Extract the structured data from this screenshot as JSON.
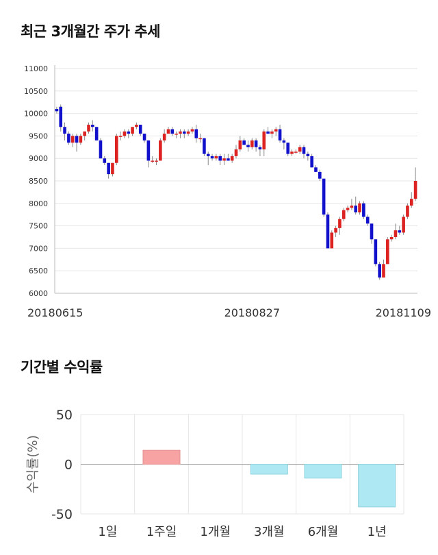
{
  "sections": {
    "trend_title": "최근 3개월간 주가 추세",
    "returns_title": "기간별 수익률"
  },
  "chart_data": [
    {
      "type": "candlestick",
      "title": "최근 3개월간 주가 추세",
      "ylim": [
        6000,
        11000
      ],
      "y_ticks": [
        6000,
        6500,
        7000,
        7500,
        8000,
        8500,
        9000,
        9500,
        10000,
        10500,
        11000
      ],
      "x_tick_labels": [
        {
          "label": "20180615",
          "index": 0
        },
        {
          "label": "20180827",
          "index": 49
        },
        {
          "label": "20181109",
          "index": 98
        }
      ],
      "grid": true,
      "up_color": "#dd2222",
      "down_color": "#1111cc",
      "candles": [
        [
          10100,
          10150,
          10000,
          10050
        ],
        [
          10150,
          10200,
          9600,
          9700
        ],
        [
          9700,
          9800,
          9400,
          9550
        ],
        [
          9550,
          9600,
          9300,
          9350
        ],
        [
          9350,
          9550,
          9250,
          9500
        ],
        [
          9500,
          9550,
          9150,
          9350
        ],
        [
          9350,
          9550,
          9300,
          9500
        ],
        [
          9500,
          9600,
          9400,
          9600
        ],
        [
          9600,
          9800,
          9550,
          9750
        ],
        [
          9750,
          9850,
          9600,
          9700
        ],
        [
          9700,
          9700,
          9400,
          9400
        ],
        [
          9400,
          9450,
          9000,
          9000
        ],
        [
          9000,
          9050,
          8850,
          8900
        ],
        [
          8900,
          8900,
          8550,
          8650
        ],
        [
          8650,
          8900,
          8600,
          8900
        ],
        [
          8900,
          9550,
          8850,
          9500
        ],
        [
          9500,
          9600,
          9400,
          9500
        ],
        [
          9500,
          9650,
          9450,
          9600
        ],
        [
          9600,
          9650,
          9450,
          9550
        ],
        [
          9550,
          9700,
          9500,
          9700
        ],
        [
          9700,
          9800,
          9650,
          9750
        ],
        [
          9750,
          9750,
          9500,
          9550
        ],
        [
          9550,
          9550,
          9350,
          9400
        ],
        [
          9400,
          9400,
          8800,
          8950
        ],
        [
          8950,
          9050,
          8900,
          8950
        ],
        [
          8950,
          9000,
          8850,
          8950
        ],
        [
          8950,
          9450,
          8950,
          9400
        ],
        [
          9400,
          9650,
          9350,
          9550
        ],
        [
          9550,
          9700,
          9550,
          9650
        ],
        [
          9650,
          9700,
          9500,
          9550
        ],
        [
          9550,
          9600,
          9450,
          9550
        ],
        [
          9550,
          9650,
          9450,
          9600
        ],
        [
          9600,
          9650,
          9450,
          9550
        ],
        [
          9550,
          9650,
          9500,
          9600
        ],
        [
          9600,
          9700,
          9550,
          9650
        ],
        [
          9650,
          9750,
          9350,
          9450
        ],
        [
          9450,
          9550,
          9350,
          9450
        ],
        [
          9450,
          9450,
          9050,
          9100
        ],
        [
          9100,
          9150,
          8850,
          9050
        ],
        [
          9050,
          9100,
          8950,
          9000
        ],
        [
          9000,
          9100,
          8950,
          9050
        ],
        [
          9050,
          9100,
          8850,
          8950
        ],
        [
          8950,
          9100,
          8850,
          9000
        ],
        [
          9000,
          9100,
          8950,
          8950
        ],
        [
          8950,
          9100,
          8900,
          9050
        ],
        [
          9050,
          9300,
          9000,
          9200
        ],
        [
          9200,
          9500,
          9150,
          9400
        ],
        [
          9400,
          9450,
          9300,
          9300
        ],
        [
          9300,
          9400,
          9150,
          9250
        ],
        [
          9250,
          9450,
          9200,
          9400
        ],
        [
          9400,
          9450,
          9150,
          9250
        ],
        [
          9250,
          9300,
          9050,
          9200
        ],
        [
          9200,
          9650,
          9050,
          9600
        ],
        [
          9600,
          9700,
          9550,
          9550
        ],
        [
          9550,
          9650,
          9450,
          9600
        ],
        [
          9600,
          9700,
          9500,
          9650
        ],
        [
          9650,
          9750,
          9350,
          9400
        ],
        [
          9400,
          9450,
          9200,
          9350
        ],
        [
          9350,
          9350,
          9050,
          9100
        ],
        [
          9100,
          9200,
          9050,
          9150
        ],
        [
          9150,
          9200,
          9100,
          9150
        ],
        [
          9150,
          9300,
          9100,
          9250
        ],
        [
          9250,
          9300,
          9000,
          9100
        ],
        [
          9100,
          9150,
          8950,
          9050
        ],
        [
          9050,
          9100,
          8800,
          8800
        ],
        [
          8800,
          8850,
          8700,
          8700
        ],
        [
          8700,
          8750,
          8500,
          8550
        ],
        [
          8550,
          8550,
          7700,
          7750
        ],
        [
          7750,
          7800,
          7000,
          7000
        ],
        [
          7000,
          7400,
          7000,
          7350
        ],
        [
          7350,
          7500,
          7250,
          7450
        ],
        [
          7450,
          7700,
          7300,
          7650
        ],
        [
          7650,
          7900,
          7600,
          7850
        ],
        [
          7850,
          7950,
          7800,
          7900
        ],
        [
          7900,
          8100,
          7850,
          7950
        ],
        [
          7950,
          8150,
          7750,
          7800
        ],
        [
          7800,
          8050,
          7750,
          8000
        ],
        [
          8000,
          8050,
          7650,
          7700
        ],
        [
          7700,
          7750,
          7500,
          7550
        ],
        [
          7550,
          7550,
          7100,
          7200
        ],
        [
          7200,
          7200,
          6600,
          6650
        ],
        [
          6650,
          6700,
          6300,
          6350
        ],
        [
          6350,
          6750,
          6350,
          6650
        ],
        [
          6650,
          7250,
          6650,
          7200
        ],
        [
          7200,
          7300,
          7150,
          7250
        ],
        [
          7250,
          7550,
          7200,
          7400
        ],
        [
          7400,
          7500,
          7300,
          7350
        ],
        [
          7350,
          7750,
          7300,
          7700
        ],
        [
          7700,
          8000,
          7650,
          7950
        ],
        [
          7950,
          8250,
          7900,
          8100
        ],
        [
          8100,
          8800,
          8050,
          8500
        ]
      ]
    },
    {
      "type": "bar",
      "title": "기간별 수익률",
      "ylabel": "수익률(%)",
      "ylim": [
        -50,
        50
      ],
      "y_ticks": [
        -50,
        0,
        50
      ],
      "grid": true,
      "categories": [
        "1일",
        "1주일",
        "1개월",
        "3개월",
        "6개월",
        "1년"
      ],
      "values": [
        0,
        14,
        0,
        -10,
        -14,
        -43
      ],
      "positive_color": "#f7a3a3",
      "negative_color": "#aee8f2"
    }
  ]
}
